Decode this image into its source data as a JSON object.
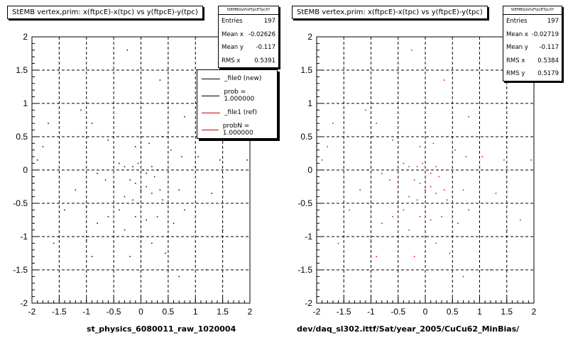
{
  "chart_data": [
    {
      "type": "scatter",
      "title": "StEMB  vertex,prim: x(ftpcE)-x(tpc) vs y(ftpcE)-y(tpc)",
      "xlabel": "st_physics_6080011_raw_1020004",
      "ylabel": "",
      "xlim": [
        -2,
        2
      ],
      "ylim": [
        -2,
        2
      ],
      "xticks": [
        "-2",
        "-1.5",
        "-1",
        "-0.5",
        "0",
        "0.5",
        "1",
        "1.5",
        "2"
      ],
      "yticks": [
        "2",
        "1.5",
        "1",
        "0.5",
        "0",
        "-0.5",
        "-1",
        "-1.5",
        "-2"
      ],
      "grid": true,
      "color": "#000000",
      "stats": {
        "title": "StEMBQaVtxFtpcETpcXY",
        "rows": [
          {
            "label": "Entries",
            "value": "197"
          },
          {
            "label": "Mean x",
            "value": "-0.02626"
          },
          {
            "label": "Mean y",
            "value": "-0.117"
          },
          {
            "label": "RMS x",
            "value": "0.5391"
          }
        ]
      },
      "legend": [
        {
          "label": "_file0 (new)",
          "color": "#000000"
        },
        {
          "label": "prob = 1.000000",
          "color": "#000000"
        },
        {
          "label": "_file1 (ref)",
          "color": "#cc0000"
        },
        {
          "label": "probN = 1.000000",
          "color": "#cc0000"
        }
      ],
      "points": [
        [
          -0.25,
          1.8
        ],
        [
          0.35,
          1.35
        ],
        [
          -1.7,
          0.7
        ],
        [
          -1.8,
          0.35
        ],
        [
          -1.9,
          0.15
        ],
        [
          1.05,
          0.2
        ],
        [
          1.45,
          0.15
        ],
        [
          1.95,
          0.15
        ],
        [
          1.0,
          0.05
        ],
        [
          0.55,
          0.3
        ],
        [
          0.8,
          0.8
        ],
        [
          -0.4,
          0.1
        ],
        [
          -0.3,
          0.05
        ],
        [
          -0.15,
          0.05
        ],
        [
          -0.05,
          0.1
        ],
        [
          0.05,
          0.0
        ],
        [
          0.1,
          -0.05
        ],
        [
          0.2,
          0.05
        ],
        [
          0.25,
          -0.1
        ],
        [
          0.3,
          0.0
        ],
        [
          -0.2,
          -0.15
        ],
        [
          -0.1,
          -0.2
        ],
        [
          0.0,
          -0.3
        ],
        [
          0.1,
          -0.25
        ],
        [
          0.2,
          -0.35
        ],
        [
          0.35,
          -0.3
        ],
        [
          0.4,
          -0.45
        ],
        [
          0.5,
          -0.5
        ],
        [
          -0.05,
          -0.5
        ],
        [
          -0.15,
          -0.45
        ],
        [
          -0.3,
          -0.4
        ],
        [
          -0.5,
          -0.25
        ],
        [
          -0.65,
          -0.15
        ],
        [
          -0.8,
          -0.05
        ],
        [
          -0.4,
          -0.6
        ],
        [
          -0.6,
          -0.7
        ],
        [
          -0.8,
          -0.8
        ],
        [
          -1.0,
          -0.55
        ],
        [
          -1.2,
          -0.3
        ],
        [
          -0.1,
          -0.7
        ],
        [
          0.1,
          -0.75
        ],
        [
          0.3,
          -0.7
        ],
        [
          0.6,
          -0.8
        ],
        [
          0.8,
          -0.6
        ],
        [
          0.7,
          -0.3
        ],
        [
          0.75,
          0.2
        ],
        [
          0.4,
          0.5
        ],
        [
          0.15,
          0.4
        ],
        [
          -0.1,
          0.35
        ],
        [
          -0.6,
          0.45
        ],
        [
          -0.9,
          0.7
        ],
        [
          -1.1,
          0.9
        ],
        [
          -1.0,
          -1.05
        ],
        [
          -0.9,
          -1.3
        ],
        [
          -0.2,
          -1.3
        ],
        [
          0.45,
          -1.25
        ],
        [
          0.7,
          -1.6
        ],
        [
          1.2,
          -1.5
        ],
        [
          1.5,
          -0.9
        ],
        [
          1.3,
          -0.35
        ],
        [
          -1.4,
          -0.6
        ],
        [
          -1.6,
          -1.1
        ],
        [
          -0.3,
          -0.9
        ],
        [
          0.0,
          -1.0
        ],
        [
          0.2,
          -1.1
        ]
      ]
    },
    {
      "type": "scatter",
      "title": "StEMB  vertex,prim: x(ftpcE)-x(tpc) vs y(ftpcE)-y(tpc)",
      "xlabel": "dev/daq_sl302.ittf/Sat/year_2005/CuCu62_MinBias/",
      "ylabel": "",
      "xlim": [
        -2,
        2
      ],
      "ylim": [
        -2,
        2
      ],
      "xticks": [
        "-2",
        "-1.5",
        "-1",
        "-0.5",
        "0",
        "0.5",
        "1",
        "1.5",
        "2"
      ],
      "yticks": [
        "2",
        "1.5",
        "1",
        "0.5",
        "0",
        "-0.5",
        "-1",
        "-1.5",
        "-2"
      ],
      "grid": true,
      "color": "#cc0000",
      "stats": {
        "title": "StEMBQaVtxFtpcETpcXY",
        "rows": [
          {
            "label": "Entries",
            "value": "197"
          },
          {
            "label": "Mean x",
            "value": "-0.02719"
          },
          {
            "label": "Mean y",
            "value": "-0.117"
          },
          {
            "label": "RMS x",
            "value": "0.5384"
          },
          {
            "label": "RMS y",
            "value": "0.5179"
          }
        ]
      },
      "points": [
        [
          -0.25,
          1.8
        ],
        [
          0.35,
          1.35
        ],
        [
          -1.7,
          0.7
        ],
        [
          -1.8,
          0.35
        ],
        [
          -1.9,
          0.15
        ],
        [
          1.05,
          0.2
        ],
        [
          1.45,
          0.15
        ],
        [
          1.95,
          0.15
        ],
        [
          1.0,
          0.05
        ],
        [
          0.55,
          0.3
        ],
        [
          0.8,
          0.8
        ],
        [
          -0.4,
          0.1
        ],
        [
          -0.3,
          0.05
        ],
        [
          -0.15,
          0.05
        ],
        [
          -0.05,
          0.1
        ],
        [
          0.05,
          0.0
        ],
        [
          0.1,
          -0.05
        ],
        [
          0.2,
          0.05
        ],
        [
          0.25,
          -0.1
        ],
        [
          0.3,
          0.0
        ],
        [
          -0.2,
          -0.15
        ],
        [
          -0.1,
          -0.2
        ],
        [
          0.0,
          -0.3
        ],
        [
          0.1,
          -0.25
        ],
        [
          0.2,
          -0.35
        ],
        [
          0.35,
          -0.3
        ],
        [
          0.4,
          -0.45
        ],
        [
          0.5,
          -0.5
        ],
        [
          -0.05,
          -0.5
        ],
        [
          -0.15,
          -0.45
        ],
        [
          -0.3,
          -0.4
        ],
        [
          -0.5,
          -0.25
        ],
        [
          -0.65,
          -0.15
        ],
        [
          -0.8,
          -0.05
        ],
        [
          -0.4,
          -0.6
        ],
        [
          -0.6,
          -0.7
        ],
        [
          -0.8,
          -0.8
        ],
        [
          -1.0,
          -0.55
        ],
        [
          -1.2,
          -0.3
        ],
        [
          -0.1,
          -0.7
        ],
        [
          0.1,
          -0.75
        ],
        [
          0.3,
          -0.7
        ],
        [
          0.6,
          -0.8
        ],
        [
          0.8,
          -0.6
        ],
        [
          0.7,
          -0.3
        ],
        [
          0.75,
          0.2
        ],
        [
          0.4,
          0.5
        ],
        [
          0.15,
          0.4
        ],
        [
          -0.1,
          0.35
        ],
        [
          -0.6,
          0.45
        ],
        [
          -0.9,
          0.7
        ],
        [
          -1.1,
          0.9
        ],
        [
          -1.0,
          -1.05
        ],
        [
          -0.9,
          -1.3
        ],
        [
          -0.2,
          -1.3
        ],
        [
          0.45,
          -1.25
        ],
        [
          0.7,
          -1.6
        ],
        [
          1.2,
          -1.5
        ],
        [
          1.5,
          -0.9
        ],
        [
          1.3,
          -0.35
        ],
        [
          -1.4,
          -0.6
        ],
        [
          -1.6,
          -1.1
        ],
        [
          -0.3,
          -0.9
        ],
        [
          0.0,
          -1.0
        ],
        [
          0.2,
          -1.1
        ],
        [
          1.75,
          -0.75
        ],
        [
          -1.5,
          -1.65
        ]
      ]
    }
  ]
}
